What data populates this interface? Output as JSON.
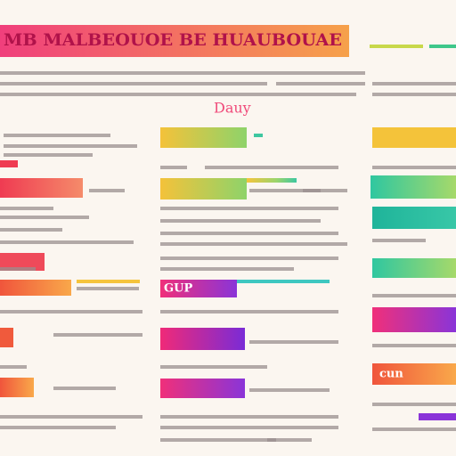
{
  "header": {
    "title": "MB MALBEOUOE BE HUAUBOUAE",
    "tagline": "Dauy"
  },
  "labels": {
    "middle_tag": "GUP",
    "right_tag": "cun"
  }
}
